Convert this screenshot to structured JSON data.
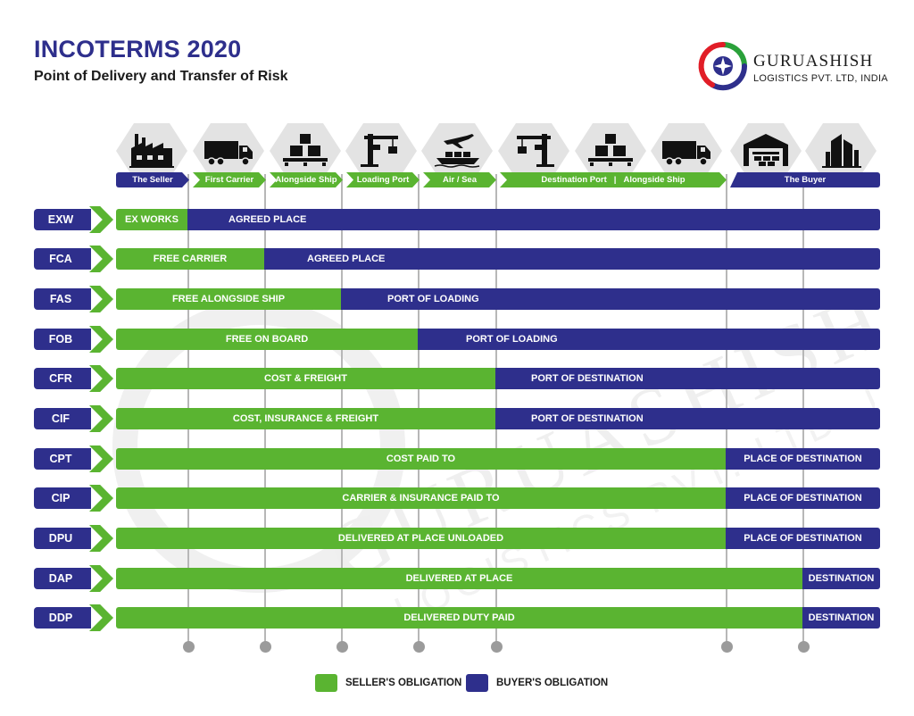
{
  "header": {
    "title": "INCOTERMS 2020",
    "subtitle": "Point of Delivery and Transfer of Risk"
  },
  "brand": {
    "name": "GURUASHISH",
    "tagline": "LOGISTICS PVT. LTD, INDIA",
    "watermark_name": "GURUASHISH",
    "watermark_tagline": "LOGISTICS PVT. LTD. INDIA"
  },
  "colors": {
    "seller": "#5ab431",
    "buyer": "#2e2f8c",
    "marker": "#b7b7b7"
  },
  "stages": [
    {
      "icon": "factory-icon",
      "label": "The Seller"
    },
    {
      "icon": "truck-icon",
      "label": "First Carrier"
    },
    {
      "icon": "boxes-icon",
      "label": "Alongside Ship"
    },
    {
      "icon": "crane-icon",
      "label": "Loading Port"
    },
    {
      "icon": "plane-ship-icon",
      "label": "Air / Sea"
    },
    {
      "icon": "crane-icon",
      "label": "Destination Port"
    },
    {
      "icon": "boxes-icon",
      "label": "Alongside Ship"
    },
    {
      "icon": "truck-icon",
      "label": "The Buyer"
    },
    {
      "icon": "warehouse-icon"
    },
    {
      "icon": "buildings-icon"
    }
  ],
  "stage_divider": "|",
  "terms": [
    {
      "code": "EXW",
      "seller": "EX WORKS",
      "buyer": "AGREED PLACE",
      "transfer_point": 1
    },
    {
      "code": "FCA",
      "seller": "FREE CARRIER",
      "buyer": "AGREED PLACE",
      "transfer_point": 2
    },
    {
      "code": "FAS",
      "seller": "FREE ALONGSIDE SHIP",
      "buyer": "PORT OF LOADING",
      "transfer_point": 3
    },
    {
      "code": "FOB",
      "seller": "FREE ON BOARD",
      "buyer": "PORT OF LOADING",
      "transfer_point": 4
    },
    {
      "code": "CFR",
      "seller": "COST & FREIGHT",
      "buyer": "PORT OF DESTINATION",
      "transfer_point": 5
    },
    {
      "code": "CIF",
      "seller": "COST, INSURANCE & FREIGHT",
      "buyer": "PORT OF DESTINATION",
      "transfer_point": 5
    },
    {
      "code": "CPT",
      "seller": "COST PAID TO",
      "buyer": "PLACE OF DESTINATION",
      "transfer_point": 6
    },
    {
      "code": "CIP",
      "seller": "CARRIER & INSURANCE PAID TO",
      "buyer": "PLACE OF DESTINATION",
      "transfer_point": 6
    },
    {
      "code": "DPU",
      "seller": "DELIVERED AT PLACE UNLOADED",
      "buyer": "PLACE OF DESTINATION",
      "transfer_point": 6
    },
    {
      "code": "DAP",
      "seller": "DELIVERED AT PLACE",
      "buyer": "DESTINATION",
      "transfer_point": 7
    },
    {
      "code": "DDP",
      "seller": "DELIVERED DUTY PAID",
      "buyer": "DESTINATION",
      "transfer_point": 7
    }
  ],
  "legend": {
    "seller": "SELLER'S OBLIGATION",
    "buyer": "BUYER'S OBLIGATION"
  }
}
